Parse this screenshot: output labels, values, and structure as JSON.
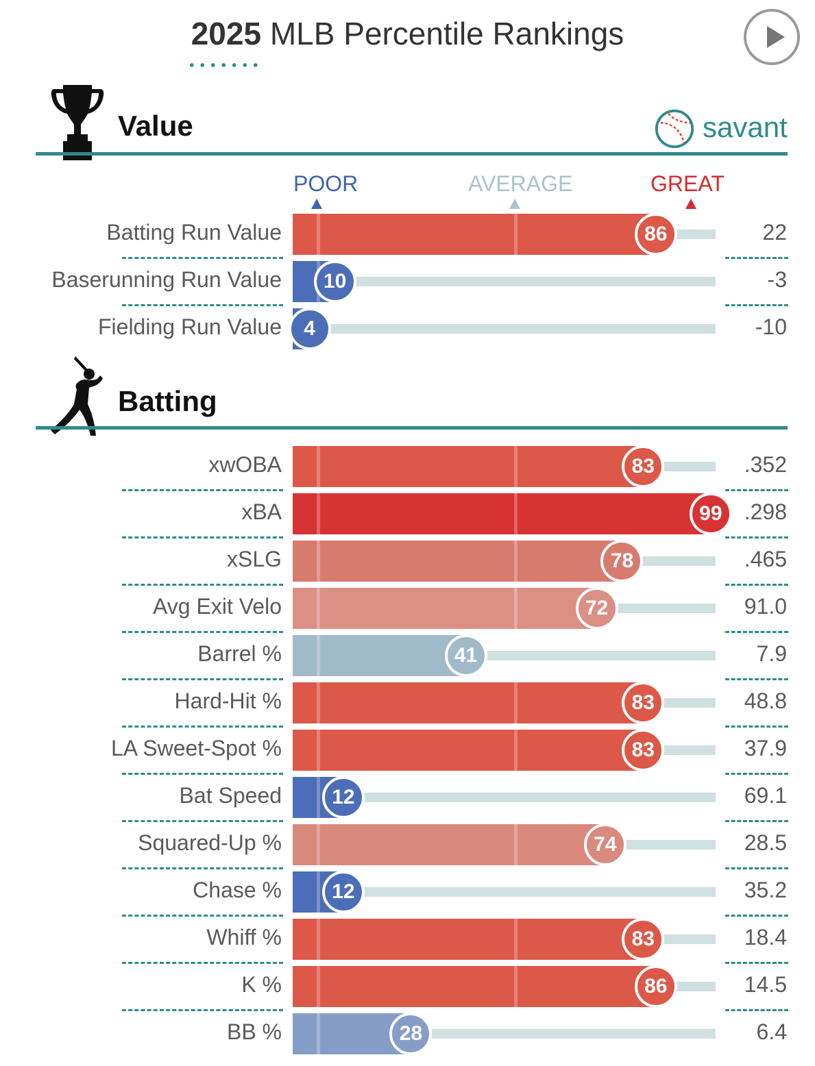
{
  "header": {
    "year": "2025",
    "title": "MLB Percentile Rankings"
  },
  "brand": {
    "name": "savant",
    "color": "#2e8b8b"
  },
  "legend": {
    "poor": "POOR",
    "average": "AVERAGE",
    "great": "GREAT",
    "poor_color": "#3d63b0",
    "average_color": "#a8c4cc",
    "great_color": "#d62a2f"
  },
  "sections": [
    {
      "title": "Value",
      "icon": "trophy-icon"
    },
    {
      "title": "Batting",
      "icon": "batter-icon"
    }
  ],
  "chart_data": {
    "type": "bar",
    "title": "2025 MLB Percentile Rankings",
    "xlim": [
      0,
      100
    ],
    "value_section": [
      {
        "metric": "Batting Run Value",
        "percentile": 86,
        "stat": "22"
      },
      {
        "metric": "Baserunning Run Value",
        "percentile": 10,
        "stat": "-3"
      },
      {
        "metric": "Fielding Run Value",
        "percentile": 4,
        "stat": "-10"
      }
    ],
    "batting_section": [
      {
        "metric": "xwOBA",
        "percentile": 83,
        "stat": ".352"
      },
      {
        "metric": "xBA",
        "percentile": 99,
        "stat": ".298"
      },
      {
        "metric": "xSLG",
        "percentile": 78,
        "stat": ".465"
      },
      {
        "metric": "Avg Exit Velo",
        "percentile": 72,
        "stat": "91.0"
      },
      {
        "metric": "Barrel %",
        "percentile": 41,
        "stat": "7.9"
      },
      {
        "metric": "Hard-Hit %",
        "percentile": 83,
        "stat": "48.8"
      },
      {
        "metric": "LA Sweet-Spot %",
        "percentile": 83,
        "stat": "37.9"
      },
      {
        "metric": "Bat Speed",
        "percentile": 12,
        "stat": "69.1"
      },
      {
        "metric": "Squared-Up %",
        "percentile": 74,
        "stat": "28.5"
      },
      {
        "metric": "Chase %",
        "percentile": 12,
        "stat": "35.2"
      },
      {
        "metric": "Whiff %",
        "percentile": 83,
        "stat": "18.4"
      },
      {
        "metric": "K %",
        "percentile": 86,
        "stat": "14.5"
      },
      {
        "metric": "BB %",
        "percentile": 28,
        "stat": "6.4"
      }
    ]
  }
}
